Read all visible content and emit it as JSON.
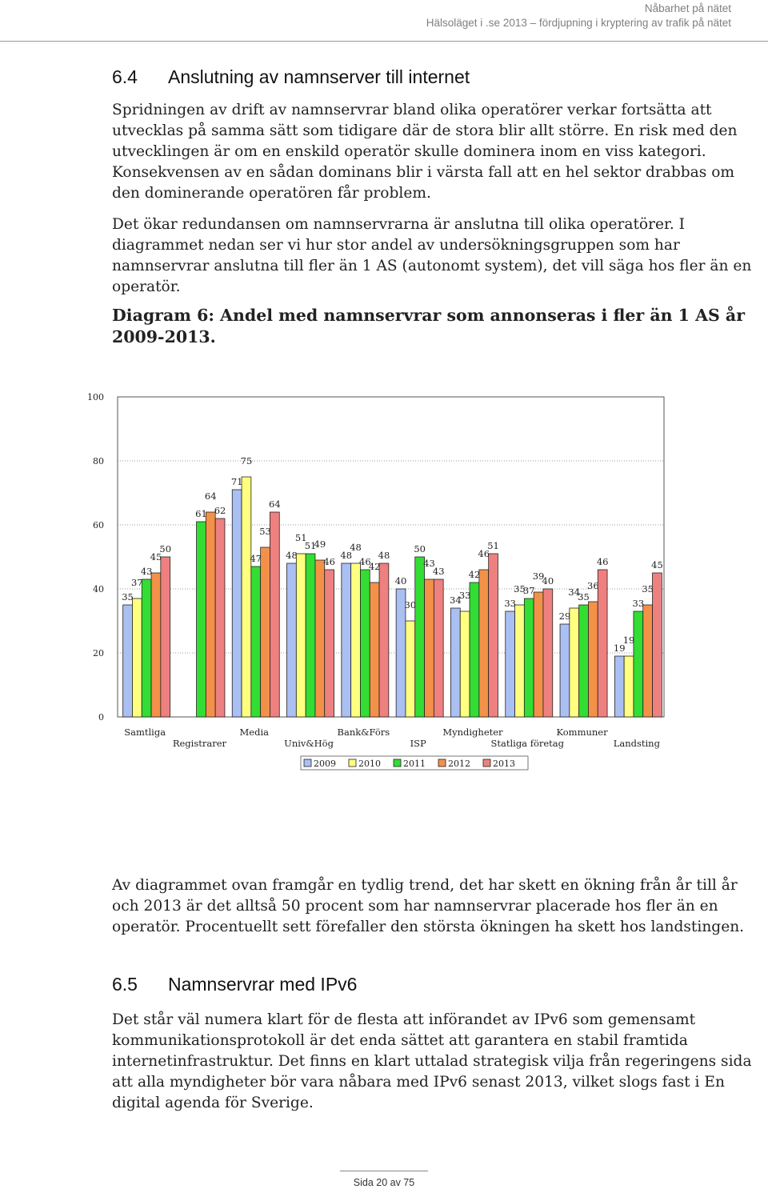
{
  "header": {
    "line1": "Nåbarhet på nätet",
    "line2": "Hälsoläget i .se 2013 – fördjupning i kryptering av trafik på nätet"
  },
  "section_64": {
    "number": "6.4",
    "title": "Anslutning av namnserver till internet",
    "para1": "Spridningen av drift av namnservrar bland olika operatörer verkar fortsätta att utvecklas på samma sätt som tidigare där de stora blir allt större. En risk med den utvecklingen är om en enskild operatör skulle dominera inom en viss kategori. Konsekvensen av en sådan dominans blir i värsta fall att en hel sektor drabbas om den dominerande operatören får problem.",
    "para2": "Det ökar redundansen om namnservrarna är anslutna till olika operatörer. I diagrammet nedan ser vi hur stor andel av undersökningsgruppen som har namnservrar anslutna till fler än 1 AS (autonomt system), det vill säga hos fler än en operatör.",
    "caption": "Diagram 6: Andel med namnservrar som annonseras i fler än 1 AS år 2009-2013."
  },
  "chart_data": {
    "type": "bar",
    "ylim": [
      0,
      100
    ],
    "yticks": [
      "100",
      "80",
      "60",
      "40",
      "20",
      "0"
    ],
    "grid": true,
    "legend_position": "bottom",
    "categories": [
      "Samtliga",
      "Registrarer",
      "Media",
      "Univ&Hög",
      "Bank&Förs",
      "ISP",
      "Myndigheter",
      "Statliga företag",
      "Kommuner",
      "Landsting"
    ],
    "colors": [
      "#aabff2",
      "#ffff80",
      "#33dd33",
      "#f39149",
      "#ee8080"
    ],
    "series": [
      {
        "name": "2009",
        "values": [
          35,
          null,
          71,
          48,
          48,
          40,
          34,
          33,
          29,
          19
        ]
      },
      {
        "name": "2010",
        "values": [
          37,
          null,
          75,
          51,
          48,
          30,
          33,
          35,
          34,
          19
        ]
      },
      {
        "name": "2011",
        "values": [
          43,
          61,
          47,
          51,
          46,
          50,
          42,
          37,
          35,
          33
        ]
      },
      {
        "name": "2012",
        "values": [
          45,
          64,
          53,
          49,
          42,
          43,
          46,
          39,
          36,
          35
        ]
      },
      {
        "name": "2013",
        "values": [
          50,
          62,
          64,
          46,
          48,
          43,
          51,
          40,
          46,
          45
        ]
      }
    ]
  },
  "paragraph_after": "Av diagrammet ovan framgår en tydlig trend, det har skett en ökning från år till år och 2013 är det alltså 50 procent som har namnservrar placerade hos fler än en operatör. Procentuellt sett förefaller den största ökningen ha skett hos landstingen.",
  "section_65": {
    "number": "6.5",
    "title": "Namnservrar med IPv6",
    "para": "Det står väl numera klart för de flesta att införandet av IPv6 som gemensamt kommunikationsprotokoll är det enda sättet att garantera en stabil framtida internetinfrastruktur. Det finns en klart uttalad strategisk vilja från regeringens sida att alla myndigheter bör vara nåbara med IPv6 senast 2013, vilket slogs fast i En digital agenda för Sverige."
  },
  "footer": {
    "page": "Sida 20 av 75"
  }
}
